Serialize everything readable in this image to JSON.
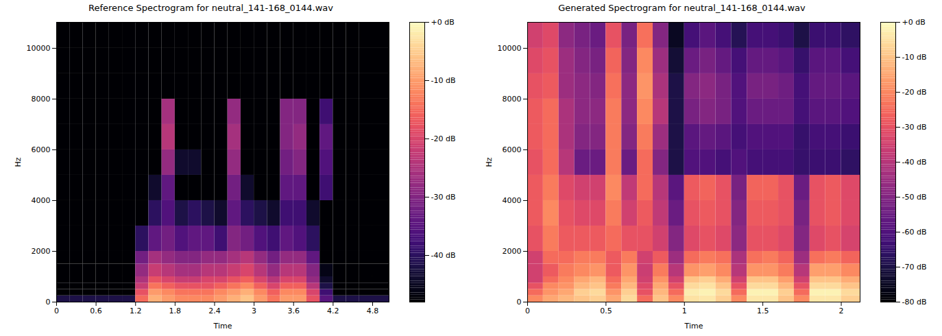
{
  "chart_data": [
    {
      "type": "heatmap",
      "title": "Reference Spectrogram for neutral_141-168_0144.wav",
      "xlabel": "Time",
      "ylabel": "Hz",
      "xlim": [
        0,
        5.05
      ],
      "ylim": [
        0,
        11025
      ],
      "xticks": [
        0,
        0.6,
        1.2,
        1.8,
        2.4,
        3,
        3.6,
        4.2,
        4.8
      ],
      "yticks": [
        0,
        2000,
        4000,
        6000,
        8000,
        10000
      ],
      "x_edges": [
        0,
        0.2,
        0.4,
        0.6,
        0.8,
        1.0,
        1.2,
        1.4,
        1.6,
        1.8,
        2.0,
        2.2,
        2.4,
        2.6,
        2.8,
        3.0,
        3.2,
        3.4,
        3.6,
        3.8,
        4.0,
        4.2,
        4.4,
        4.6,
        4.8,
        5.05
      ],
      "y_edges": [
        0,
        250,
        500,
        750,
        1000,
        1500,
        2000,
        3000,
        4000,
        5000,
        6000,
        7000,
        8000,
        9000,
        10000,
        11025
      ],
      "values": [
        [
          -42,
          -42,
          -42,
          -42,
          -42,
          -42,
          -15,
          -8,
          -10,
          -12,
          -12,
          -12,
          -10,
          -8,
          -6,
          -10,
          -14,
          -10,
          -10,
          -18,
          -35,
          -42,
          -42,
          -42,
          -42
        ],
        [
          -48,
          -48,
          -48,
          -48,
          -48,
          -48,
          -18,
          -10,
          -12,
          -14,
          -14,
          -14,
          -12,
          -10,
          -8,
          -12,
          -16,
          -12,
          -12,
          -20,
          -38,
          -48,
          -48,
          -48,
          -48
        ],
        [
          -48,
          -48,
          -48,
          -48,
          -48,
          -48,
          -22,
          -14,
          -16,
          -18,
          -18,
          -18,
          -16,
          -14,
          -12,
          -16,
          -20,
          -16,
          -16,
          -24,
          -42,
          -48,
          -48,
          -48,
          -48
        ],
        [
          -48,
          -48,
          -48,
          -48,
          -48,
          -48,
          -25,
          -18,
          -20,
          -22,
          -22,
          -20,
          -20,
          -18,
          -16,
          -20,
          -24,
          -20,
          -20,
          -28,
          -44,
          -48,
          -48,
          -48,
          -48
        ],
        [
          -48,
          -48,
          -48,
          -48,
          -48,
          -48,
          -28,
          -22,
          -24,
          -26,
          -26,
          -24,
          -24,
          -22,
          -20,
          -24,
          -28,
          -24,
          -24,
          -30,
          -46,
          -48,
          -48,
          -48,
          -48
        ],
        [
          -48,
          -48,
          -48,
          -48,
          -48,
          -48,
          -32,
          -26,
          -28,
          -30,
          -30,
          -28,
          -28,
          -26,
          -24,
          -28,
          -32,
          -28,
          -28,
          -34,
          -48,
          -48,
          -48,
          -48,
          -48
        ],
        [
          -48,
          -48,
          -48,
          -48,
          -48,
          -48,
          -40,
          -34,
          -32,
          -36,
          -34,
          -34,
          -38,
          -30,
          -32,
          -36,
          -38,
          -34,
          -36,
          -40,
          -48,
          -48,
          -48,
          -48,
          -48
        ],
        [
          -48,
          -48,
          -48,
          -48,
          -48,
          -48,
          -48,
          -40,
          -36,
          -42,
          -40,
          -42,
          -44,
          -34,
          -40,
          -42,
          -44,
          -38,
          -38,
          -44,
          -48,
          -48,
          -48,
          -48,
          -48
        ],
        [
          -48,
          -48,
          -48,
          -48,
          -48,
          -48,
          -48,
          -44,
          -34,
          -48,
          -48,
          -48,
          -48,
          -32,
          -44,
          -48,
          -48,
          -34,
          -34,
          -48,
          -38,
          -48,
          -48,
          -48,
          -48
        ],
        [
          -48,
          -48,
          -48,
          -48,
          -48,
          -48,
          -48,
          -48,
          -28,
          -44,
          -44,
          -48,
          -48,
          -28,
          -48,
          -48,
          -48,
          -32,
          -30,
          -48,
          -36,
          -48,
          -48,
          -48,
          -48
        ],
        [
          -48,
          -48,
          -48,
          -48,
          -48,
          -48,
          -48,
          -48,
          -24,
          -48,
          -48,
          -48,
          -48,
          -26,
          -48,
          -48,
          -48,
          -30,
          -28,
          -48,
          -34,
          -48,
          -48,
          -48,
          -48
        ],
        [
          -48,
          -48,
          -48,
          -48,
          -48,
          -48,
          -48,
          -48,
          -26,
          -48,
          -48,
          -48,
          -48,
          -28,
          -48,
          -48,
          -48,
          -30,
          -30,
          -48,
          -38,
          -48,
          -48,
          -48,
          -48
        ],
        [
          -48,
          -48,
          -48,
          -48,
          -48,
          -48,
          -48,
          -48,
          -48,
          -48,
          -48,
          -48,
          -48,
          -48,
          -48,
          -48,
          -48,
          -48,
          -48,
          -48,
          -48,
          -48,
          -48,
          -48,
          -48
        ],
        [
          -48,
          -48,
          -48,
          -48,
          -48,
          -48,
          -48,
          -48,
          -48,
          -48,
          -48,
          -48,
          -48,
          -48,
          -48,
          -48,
          -48,
          -48,
          -48,
          -48,
          -48,
          -48,
          -48,
          -48,
          -48
        ],
        [
          -48,
          -48,
          -48,
          -48,
          -48,
          -48,
          -48,
          -48,
          -48,
          -48,
          -48,
          -48,
          -48,
          -48,
          -48,
          -48,
          -48,
          -48,
          -48,
          -48,
          -48,
          -48,
          -48,
          -48,
          -48
        ]
      ],
      "colorbar": {
        "range": [
          -48,
          0
        ],
        "ticks": [
          {
            "value": 0,
            "label": "+0 dB"
          },
          {
            "value": -10,
            "label": "-10 dB"
          },
          {
            "value": -20,
            "label": "-20 dB"
          },
          {
            "value": -30,
            "label": "-30 dB"
          },
          {
            "value": -40,
            "label": "-40 dB"
          }
        ]
      }
    },
    {
      "type": "heatmap",
      "title": "Generated Spectrogram for neutral_141-168_0144.wav",
      "xlabel": "Time",
      "ylabel": "Hz",
      "xlim": [
        0,
        2.12
      ],
      "ylim": [
        0,
        11025
      ],
      "xticks": [
        0,
        0.5,
        1,
        1.5,
        2
      ],
      "yticks": [
        0,
        2000,
        4000,
        6000,
        8000,
        10000
      ],
      "x_edges": [
        0,
        0.1,
        0.2,
        0.3,
        0.4,
        0.5,
        0.6,
        0.7,
        0.8,
        0.9,
        1.0,
        1.1,
        1.2,
        1.3,
        1.4,
        1.5,
        1.6,
        1.7,
        1.8,
        1.9,
        2.0,
        2.12
      ],
      "y_edges": [
        0,
        250,
        500,
        750,
        1000,
        1500,
        2000,
        3000,
        4000,
        5000,
        6000,
        7000,
        8000,
        9000,
        10000,
        11025
      ],
      "values": [
        [
          -20,
          -15,
          -12,
          -10,
          -8,
          -15,
          -6,
          -25,
          -10,
          -20,
          -5,
          -4,
          -8,
          -20,
          -4,
          -4,
          -10,
          -20,
          -4,
          -4,
          -8
        ],
        [
          -25,
          -18,
          -15,
          -8,
          -6,
          -18,
          -8,
          -30,
          -12,
          -25,
          -3,
          -2,
          -6,
          -25,
          -2,
          -2,
          -8,
          -25,
          -2,
          -2,
          -6
        ],
        [
          -30,
          -20,
          -18,
          -12,
          -10,
          -22,
          -12,
          -32,
          -15,
          -30,
          -6,
          -5,
          -10,
          -30,
          -6,
          -6,
          -12,
          -30,
          -6,
          -6,
          -10
        ],
        [
          -35,
          -25,
          -20,
          -15,
          -12,
          -25,
          -15,
          -35,
          -18,
          -35,
          -10,
          -8,
          -14,
          -35,
          -10,
          -10,
          -16,
          -35,
          -10,
          -10,
          -14
        ],
        [
          -35,
          -28,
          -22,
          -20,
          -18,
          -28,
          -18,
          -36,
          -22,
          -40,
          -18,
          -16,
          -20,
          -40,
          -18,
          -18,
          -22,
          -40,
          -16,
          -16,
          -20
        ],
        [
          -35,
          -25,
          -25,
          -22,
          -22,
          -28,
          -22,
          -35,
          -28,
          -45,
          -25,
          -22,
          -24,
          -42,
          -24,
          -22,
          -26,
          -45,
          -24,
          -22,
          -26
        ],
        [
          -30,
          -22,
          -28,
          -28,
          -28,
          -25,
          -30,
          -30,
          -35,
          -50,
          -32,
          -30,
          -32,
          -48,
          -30,
          -30,
          -32,
          -50,
          -32,
          -30,
          -34
        ],
        [
          -28,
          -20,
          -30,
          -32,
          -32,
          -22,
          -35,
          -28,
          -38,
          -55,
          -30,
          -28,
          -30,
          -50,
          -28,
          -28,
          -30,
          -52,
          -30,
          -28,
          -32
        ],
        [
          -28,
          -22,
          -32,
          -35,
          -35,
          -20,
          -38,
          -25,
          -40,
          -58,
          -28,
          -26,
          -30,
          -52,
          -26,
          -26,
          -30,
          -55,
          -30,
          -28,
          -32
        ],
        [
          -30,
          -25,
          -40,
          -55,
          -55,
          -22,
          -55,
          -25,
          -50,
          -70,
          -60,
          -60,
          -62,
          -60,
          -62,
          -62,
          -62,
          -65,
          -64,
          -64,
          -66
        ],
        [
          -28,
          -25,
          -42,
          -50,
          -50,
          -22,
          -50,
          -22,
          -45,
          -70,
          -58,
          -56,
          -58,
          -62,
          -60,
          -60,
          -60,
          -65,
          -62,
          -62,
          -64
        ],
        [
          -28,
          -25,
          -42,
          -48,
          -48,
          -22,
          -48,
          -20,
          -40,
          -70,
          -52,
          -50,
          -52,
          -60,
          -55,
          -55,
          -55,
          -62,
          -58,
          -58,
          -60
        ],
        [
          -30,
          -28,
          -45,
          -48,
          -50,
          -24,
          -48,
          -18,
          -42,
          -70,
          -50,
          -48,
          -52,
          -60,
          -52,
          -52,
          -54,
          -62,
          -56,
          -56,
          -58
        ],
        [
          -32,
          -30,
          -45,
          -50,
          -52,
          -26,
          -50,
          -20,
          -45,
          -72,
          -55,
          -52,
          -56,
          -62,
          -56,
          -56,
          -58,
          -65,
          -58,
          -58,
          -62
        ],
        [
          -35,
          -32,
          -48,
          -52,
          -55,
          -30,
          -52,
          -24,
          -50,
          -75,
          -62,
          -58,
          -62,
          -68,
          -62,
          -62,
          -64,
          -70,
          -64,
          -64,
          -66
        ]
      ],
      "colorbar": {
        "range": [
          -80,
          0
        ],
        "ticks": [
          {
            "value": 0,
            "label": "+0 dB"
          },
          {
            "value": -10,
            "label": "-10 dB"
          },
          {
            "value": -20,
            "label": "-20 dB"
          },
          {
            "value": -30,
            "label": "-30 dB"
          },
          {
            "value": -40,
            "label": "-40 dB"
          },
          {
            "value": -50,
            "label": "-50 dB"
          },
          {
            "value": -60,
            "label": "-60 dB"
          },
          {
            "value": -70,
            "label": "-70 dB"
          },
          {
            "value": -80,
            "label": "-80 dB"
          }
        ]
      }
    }
  ]
}
